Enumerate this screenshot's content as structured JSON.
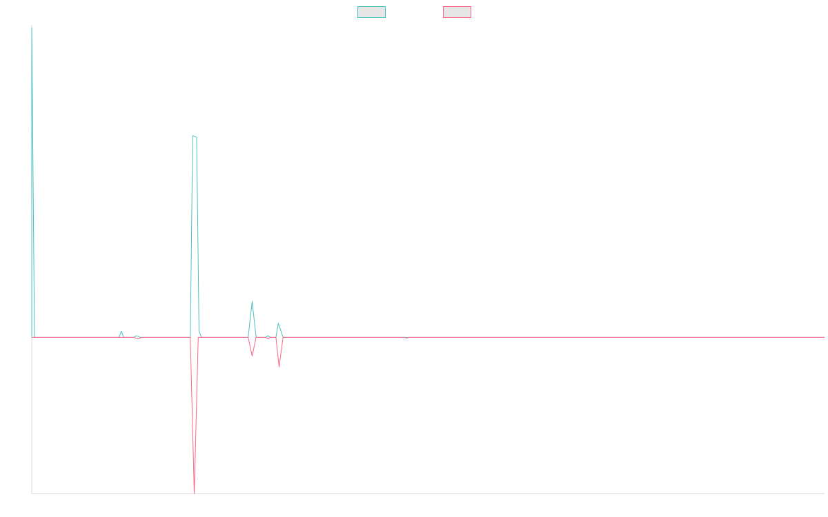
{
  "chart_data": {
    "type": "line",
    "title": "",
    "xlabel": "",
    "ylabel": "",
    "x_range": [
      0,
      100
    ],
    "ylim": [
      -100,
      200
    ],
    "grid": false,
    "legend": {
      "placement": "top-center",
      "labels": [
        "",
        ""
      ]
    },
    "series": [
      {
        "color": "#4bc0c0",
        "fill": "#e6e6e6",
        "points": [
          [
            0,
            0
          ],
          [
            0.0,
            198.0
          ],
          [
            0.35,
            0
          ],
          [
            11.0,
            0
          ],
          [
            11.3,
            4
          ],
          [
            11.6,
            0
          ],
          [
            12.9,
            0
          ],
          [
            13.2,
            1
          ],
          [
            13.7,
            0
          ],
          [
            20.0,
            0
          ],
          [
            20.3,
            129
          ],
          [
            20.8,
            128
          ],
          [
            21.1,
            4
          ],
          [
            21.4,
            0
          ],
          [
            27.3,
            0
          ],
          [
            27.8,
            23
          ],
          [
            28.3,
            0
          ],
          [
            29.5,
            0
          ],
          [
            29.8,
            1
          ],
          [
            30.1,
            0
          ],
          [
            30.8,
            0
          ],
          [
            31.1,
            9
          ],
          [
            31.7,
            0
          ],
          [
            100,
            0
          ]
        ]
      },
      {
        "color": "#ff6384",
        "fill": "#e6e6e6",
        "points": [
          [
            0,
            0
          ],
          [
            11.0,
            0
          ],
          [
            11.6,
            0
          ],
          [
            12.9,
            0
          ],
          [
            13.4,
            -1
          ],
          [
            13.9,
            0
          ],
          [
            20.0,
            0
          ],
          [
            20.5,
            -100
          ],
          [
            21.0,
            0
          ],
          [
            27.3,
            0
          ],
          [
            27.8,
            -12
          ],
          [
            28.3,
            0
          ],
          [
            29.5,
            0
          ],
          [
            29.8,
            -1
          ],
          [
            30.1,
            0
          ],
          [
            30.8,
            0
          ],
          [
            31.2,
            -19
          ],
          [
            31.7,
            0
          ],
          [
            47.0,
            0
          ],
          [
            47.3,
            -0.5
          ],
          [
            47.6,
            0
          ],
          [
            100,
            0
          ]
        ]
      }
    ]
  }
}
